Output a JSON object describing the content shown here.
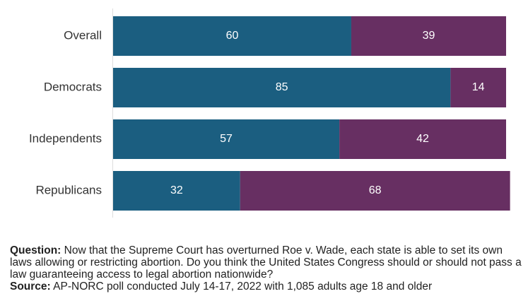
{
  "chart_data": {
    "type": "bar",
    "orientation": "horizontal",
    "stacked": true,
    "categories": [
      "Overall",
      "Democrats",
      "Independents",
      "Republicans"
    ],
    "series": [
      {
        "values": [
          60,
          85,
          57,
          32
        ],
        "color": "#1b5e80"
      },
      {
        "values": [
          39,
          14,
          42,
          68
        ],
        "color": "#672f62"
      }
    ],
    "xlim": [
      0,
      99
    ],
    "grid": false,
    "legend": "none"
  },
  "notes": {
    "question_label": "Question:",
    "question_text": "Now that the Supreme Court has overturned Roe v. Wade, each state is able to set its own laws allowing or restricting abortion. Do you think the United States Congress should or should not pass a law guaranteeing access to legal abortion nationwide?",
    "source_label": "Source:",
    "source_text": "AP-NORC poll conducted July 14-17, 2022 with 1,085 adults age 18 and older"
  }
}
